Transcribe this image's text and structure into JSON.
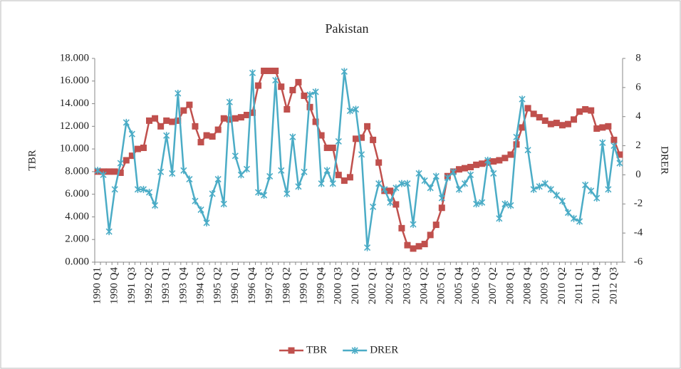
{
  "chart_data": {
    "type": "line",
    "title": "Pakistan",
    "y_label": "TBR",
    "y2_label": "DRER",
    "categories": [
      "1990 Q1",
      null,
      null,
      "1990 Q4",
      null,
      null,
      "1991 Q3",
      null,
      null,
      "1992 Q2",
      null,
      null,
      "1993 Q1",
      null,
      null,
      "1993 Q4",
      null,
      null,
      "1994 Q3",
      null,
      null,
      "1995 Q2",
      null,
      null,
      "1996 Q1",
      null,
      null,
      "1996 Q4",
      null,
      null,
      "1997 Q3",
      null,
      null,
      "1998 Q2",
      null,
      null,
      "1999 Q1",
      null,
      null,
      "1999 Q4",
      null,
      null,
      "2000 Q3",
      null,
      null,
      "2001 Q2",
      null,
      null,
      "2002 Q1",
      null,
      null,
      "2002 Q4",
      null,
      null,
      "2003 Q3",
      null,
      null,
      "2004 Q2",
      null,
      null,
      "2005 Q1",
      null,
      null,
      "2005 Q4",
      null,
      null,
      "2006 Q3",
      null,
      null,
      "2007 Q2",
      null,
      null,
      "2008 Q1",
      null,
      null,
      "2008 Q4",
      null,
      null,
      "2009 Q3",
      null,
      null,
      "2010 Q2",
      null,
      null,
      "2011 Q1",
      null,
      null,
      "2011 Q4",
      null,
      null,
      "2012 Q3",
      null
    ],
    "series": [
      {
        "name": "TBR",
        "color": "#c0504d",
        "marker": "square",
        "axis": "y",
        "values": [
          8.0,
          8.0,
          8.0,
          8.0,
          7.9,
          9.0,
          9.4,
          10.0,
          10.1,
          12.5,
          12.7,
          12.0,
          12.5,
          12.4,
          12.5,
          13.4,
          13.9,
          12.0,
          10.6,
          11.2,
          11.1,
          11.7,
          12.7,
          12.6,
          12.7,
          12.8,
          13.0,
          13.2,
          15.6,
          16.9,
          16.9,
          16.9,
          15.5,
          13.5,
          15.2,
          15.9,
          14.7,
          13.7,
          12.4,
          11.2,
          10.1,
          10.1,
          7.7,
          7.2,
          7.5,
          10.9,
          11.0,
          12.0,
          10.8,
          8.8,
          6.3,
          6.3,
          5.1,
          3.0,
          1.5,
          1.2,
          1.4,
          1.6,
          2.4,
          3.3,
          4.8,
          7.6,
          8.0,
          8.2,
          8.3,
          8.4,
          8.6,
          8.7,
          8.8,
          8.9,
          9.0,
          9.2,
          9.5,
          10.4,
          11.9,
          13.6,
          13.1,
          12.8,
          12.5,
          12.2,
          12.3,
          12.1,
          12.2,
          12.6,
          13.3,
          13.5,
          13.4,
          11.8,
          11.9,
          12.0,
          10.8,
          9.5
        ]
      },
      {
        "name": "DRER",
        "color": "#4bacc6",
        "marker": "x",
        "axis": "y2",
        "values": [
          0.3,
          0.0,
          -3.9,
          -1.0,
          0.8,
          3.6,
          2.8,
          -1.0,
          -1.0,
          -1.2,
          -2.1,
          0.2,
          2.7,
          0.1,
          5.6,
          0.3,
          -0.3,
          -1.8,
          -2.4,
          -3.3,
          -1.3,
          -0.3,
          -2.0,
          5.0,
          1.3,
          0.0,
          0.4,
          7.0,
          -1.2,
          -1.4,
          -0.1,
          6.5,
          0.3,
          -1.3,
          2.6,
          -0.8,
          0.2,
          5.5,
          5.7,
          -0.6,
          0.3,
          -0.6,
          2.3,
          7.1,
          4.4,
          4.5,
          1.4,
          -5.0,
          -2.2,
          -0.6,
          -1.0,
          -1.9,
          -0.9,
          -0.6,
          -0.6,
          -3.4,
          0.1,
          -0.4,
          -0.9,
          -0.1,
          -1.6,
          -0.2,
          0.2,
          -1.0,
          -0.6,
          0.0,
          -2.0,
          -1.9,
          1.0,
          0.1,
          -3.0,
          -2.0,
          -2.1,
          2.6,
          5.2,
          1.7,
          -1.0,
          -0.8,
          -0.6,
          -1.0,
          -1.4,
          -1.8,
          -2.6,
          -3.0,
          -3.2,
          -0.7,
          -1.1,
          -1.6,
          2.2,
          -1.0,
          2.0,
          0.8
        ]
      }
    ],
    "ylim": [
      0,
      18
    ],
    "yticks": [
      {
        "value": 0,
        "label": "0.000"
      },
      {
        "value": 2,
        "label": "2.000"
      },
      {
        "value": 4,
        "label": "4.000"
      },
      {
        "value": 6,
        "label": "6.000"
      },
      {
        "value": 8,
        "label": "8.000"
      },
      {
        "value": 10,
        "label": "10.000"
      },
      {
        "value": 12,
        "label": "12.000"
      },
      {
        "value": 14,
        "label": "14.000"
      },
      {
        "value": 16,
        "label": "16.000"
      },
      {
        "value": 18,
        "label": "18.000"
      }
    ],
    "y2lim": [
      -6,
      8
    ],
    "y2ticks": [
      -6,
      -4,
      -2,
      0,
      2,
      4,
      6,
      8
    ],
    "grid": false,
    "legend": "bottom"
  }
}
